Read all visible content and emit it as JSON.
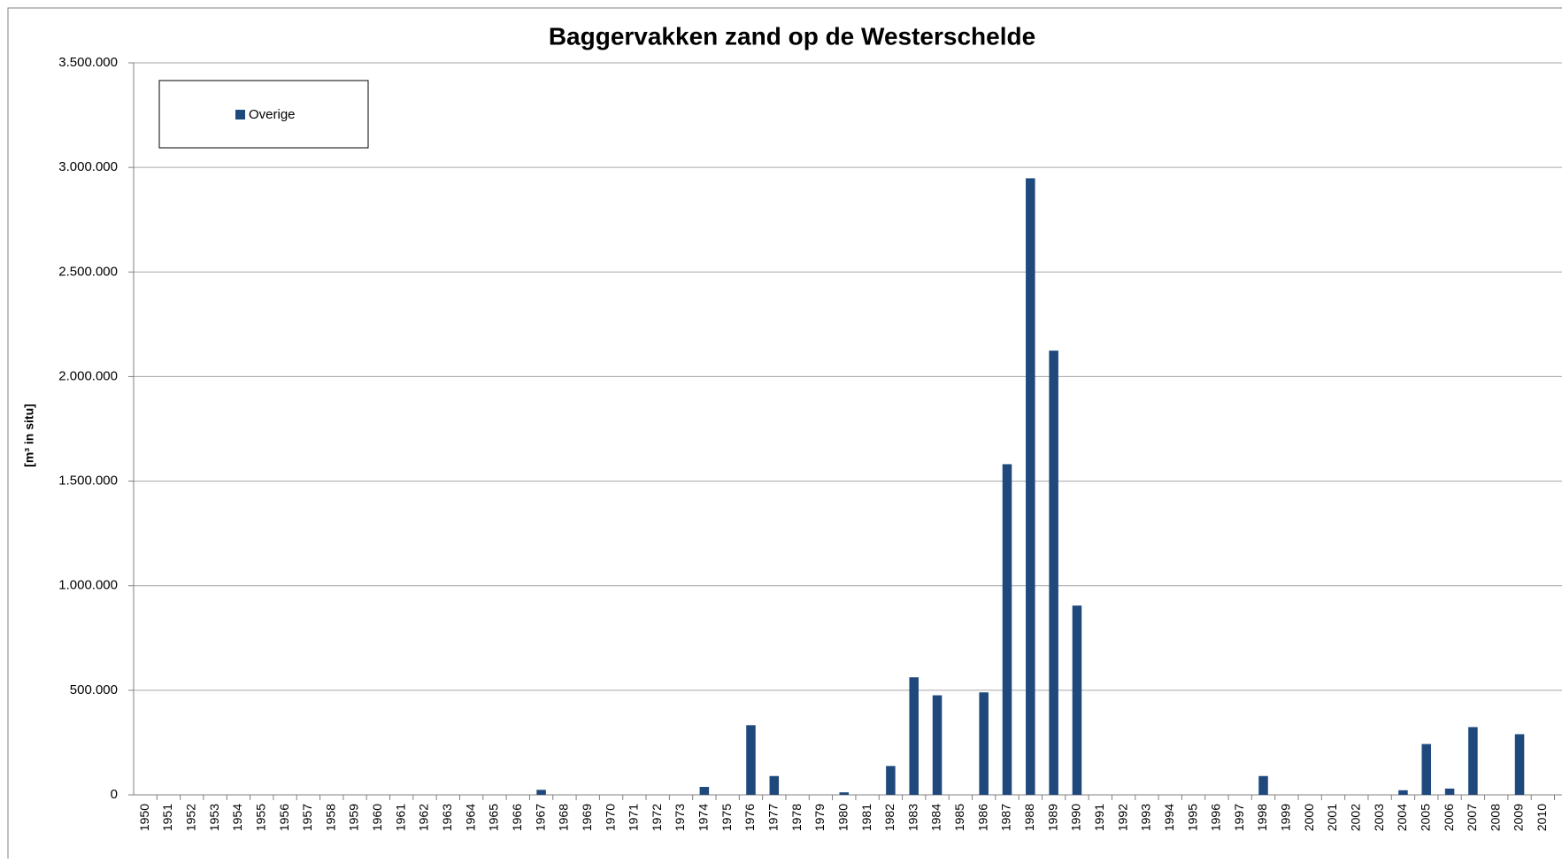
{
  "chart_data": {
    "type": "bar",
    "title": "Baggervakken zand op de Westerschelde",
    "y_label": "[m³ in situ]",
    "categories": [
      "1950",
      "1951",
      "1952",
      "1953",
      "1954",
      "1955",
      "1956",
      "1957",
      "1958",
      "1959",
      "1960",
      "1961",
      "1962",
      "1963",
      "1964",
      "1965",
      "1966",
      "1967",
      "1968",
      "1969",
      "1970",
      "1971",
      "1972",
      "1973",
      "1974",
      "1975",
      "1976",
      "1977",
      "1978",
      "1979",
      "1980",
      "1981",
      "1982",
      "1983",
      "1984",
      "1985",
      "1986",
      "1987",
      "1988",
      "1989",
      "1990",
      "1991",
      "1992",
      "1993",
      "1994",
      "1995",
      "1996",
      "1997",
      "1998",
      "1999",
      "2000",
      "2001",
      "2002",
      "2003",
      "2004",
      "2005",
      "2006",
      "2007",
      "2008",
      "2009",
      "2010"
    ],
    "series": [
      {
        "name": "Overige",
        "color": "#1f497d",
        "values": [
          0,
          0,
          0,
          0,
          0,
          0,
          0,
          0,
          0,
          0,
          0,
          0,
          0,
          0,
          0,
          0,
          0,
          24000,
          0,
          0,
          0,
          0,
          0,
          0,
          38000,
          0,
          333000,
          90000,
          0,
          0,
          12000,
          0,
          138000,
          562000,
          476000,
          0,
          490000,
          1581000,
          2948000,
          2124000,
          905000,
          0,
          0,
          0,
          0,
          0,
          0,
          0,
          90000,
          0,
          0,
          0,
          0,
          0,
          22000,
          243000,
          30000,
          324000,
          0,
          290000,
          0
        ]
      }
    ],
    "ylim": [
      0,
      3500000
    ],
    "yticks": [
      0,
      {
        "value": 500000,
        "label": "500.000"
      },
      {
        "value": 1000000,
        "label": "1.000.000"
      },
      {
        "value": 1500000,
        "label": "1.500.000"
      },
      {
        "value": 2000000,
        "label": "2.000.000"
      },
      {
        "value": 2500000,
        "label": "2.500.000"
      },
      {
        "value": 3000000,
        "label": "3.000.000"
      },
      {
        "value": 3500000,
        "label": "3.500.000"
      }
    ],
    "grid": true,
    "legend": "upper left"
  }
}
